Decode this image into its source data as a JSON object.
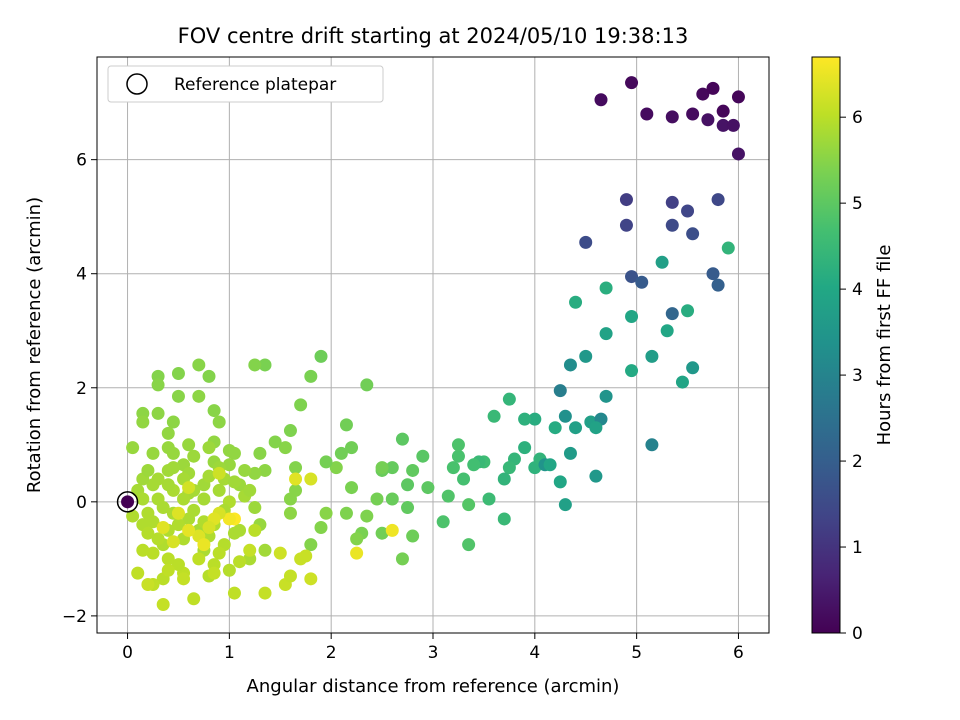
{
  "chart_data": {
    "type": "scatter",
    "title": "FOV centre drift starting at 2024/05/10 19:38:13",
    "xlabel": "Angular distance from reference (arcmin)",
    "ylabel": "Rotation from reference (arcmin)",
    "xlim": [
      -0.3,
      6.3
    ],
    "ylim": [
      -2.3,
      7.8
    ],
    "x_ticks": [
      0,
      1,
      2,
      3,
      4,
      5,
      6
    ],
    "y_ticks": [
      -2,
      0,
      2,
      4,
      6
    ],
    "grid": true,
    "legend": {
      "location": "top-left",
      "entries": [
        "Reference platepar"
      ]
    },
    "reference_point": {
      "x": 0,
      "y": 0,
      "label": "Reference platepar"
    },
    "colorbar": {
      "label": "Hours from first FF file",
      "colormap": "viridis",
      "range": [
        0,
        6.7
      ],
      "ticks": [
        0,
        1,
        2,
        3,
        4,
        5,
        6
      ]
    },
    "points": [
      [
        0.0,
        0.0,
        0.0
      ],
      [
        4.95,
        7.35,
        0.15
      ],
      [
        4.65,
        7.05,
        0.2
      ],
      [
        5.1,
        6.8,
        0.2
      ],
      [
        5.35,
        6.75,
        0.25
      ],
      [
        5.55,
        6.8,
        0.2
      ],
      [
        5.65,
        7.15,
        0.15
      ],
      [
        5.75,
        7.25,
        0.1
      ],
      [
        5.85,
        6.85,
        0.1
      ],
      [
        6.0,
        7.1,
        0.1
      ],
      [
        5.7,
        6.7,
        0.3
      ],
      [
        5.85,
        6.6,
        0.35
      ],
      [
        5.95,
        6.6,
        0.3
      ],
      [
        6.0,
        6.1,
        0.35
      ],
      [
        4.9,
        5.3,
        1.2
      ],
      [
        5.35,
        5.25,
        1.25
      ],
      [
        5.5,
        5.1,
        1.4
      ],
      [
        5.8,
        5.3,
        1.45
      ],
      [
        4.9,
        4.85,
        1.35
      ],
      [
        5.35,
        4.85,
        1.5
      ],
      [
        5.55,
        4.7,
        1.6
      ],
      [
        4.5,
        4.55,
        1.55
      ],
      [
        4.95,
        3.95,
        1.7
      ],
      [
        5.05,
        3.85,
        1.9
      ],
      [
        5.75,
        4.0,
        1.9
      ],
      [
        5.8,
        3.8,
        2.05
      ],
      [
        5.35,
        3.3,
        2.2
      ],
      [
        4.7,
        3.75,
        4.2
      ],
      [
        4.4,
        3.5,
        4.15
      ],
      [
        4.7,
        2.95,
        3.85
      ],
      [
        4.95,
        3.25,
        3.95
      ],
      [
        5.25,
        4.2,
        3.75
      ],
      [
        5.9,
        4.45,
        4.35
      ],
      [
        5.5,
        3.35,
        4.15
      ],
      [
        4.5,
        2.55,
        3.55
      ],
      [
        4.35,
        2.4,
        3.25
      ],
      [
        4.25,
        1.95,
        2.85
      ],
      [
        4.3,
        1.5,
        3.35
      ],
      [
        4.4,
        1.3,
        3.8
      ],
      [
        4.55,
        1.4,
        3.75
      ],
      [
        4.7,
        1.85,
        3.45
      ],
      [
        4.65,
        1.45,
        3.1
      ],
      [
        4.6,
        1.3,
        3.85
      ],
      [
        5.3,
        3.0,
        3.95
      ],
      [
        5.55,
        2.35,
        3.55
      ],
      [
        5.45,
        2.1,
        3.9
      ],
      [
        4.95,
        2.3,
        4.05
      ],
      [
        5.15,
        2.55,
        3.7
      ],
      [
        5.15,
        1.0,
        2.95
      ],
      [
        4.6,
        0.45,
        3.55
      ],
      [
        4.3,
        -0.05,
        3.8
      ],
      [
        4.25,
        0.35,
        3.95
      ],
      [
        4.2,
        1.3,
        4.1
      ],
      [
        4.0,
        1.45,
        4.15
      ],
      [
        3.9,
        0.95,
        4.25
      ],
      [
        4.0,
        0.6,
        4.3
      ],
      [
        4.05,
        0.75,
        4.35
      ],
      [
        4.1,
        0.65,
        3.45
      ],
      [
        4.15,
        0.65,
        3.95
      ],
      [
        4.35,
        0.85,
        3.65
      ],
      [
        3.8,
        0.75,
        4.4
      ],
      [
        3.75,
        0.6,
        4.45
      ],
      [
        3.7,
        0.4,
        4.35
      ],
      [
        3.7,
        -0.3,
        4.5
      ],
      [
        3.55,
        0.05,
        4.55
      ],
      [
        3.6,
        1.5,
        4.5
      ],
      [
        3.75,
        1.8,
        4.4
      ],
      [
        3.9,
        1.45,
        4.25
      ],
      [
        3.5,
        0.7,
        4.6
      ],
      [
        3.45,
        0.7,
        4.5
      ],
      [
        3.4,
        0.65,
        4.65
      ],
      [
        3.3,
        0.4,
        4.7
      ],
      [
        3.25,
        0.8,
        4.75
      ],
      [
        3.25,
        1.0,
        4.8
      ],
      [
        3.2,
        0.6,
        4.75
      ],
      [
        3.15,
        0.1,
        4.85
      ],
      [
        3.1,
        -0.35,
        4.8
      ],
      [
        3.35,
        -0.05,
        4.9
      ],
      [
        3.35,
        -0.75,
        4.85
      ],
      [
        2.9,
        0.8,
        4.95
      ],
      [
        2.95,
        0.25,
        5.0
      ],
      [
        2.8,
        0.55,
        5.05
      ],
      [
        2.75,
        0.3,
        5.0
      ],
      [
        2.7,
        1.1,
        5.0
      ],
      [
        2.6,
        0.6,
        5.1
      ],
      [
        2.6,
        0.05,
        5.15
      ],
      [
        2.75,
        -0.1,
        5.05
      ],
      [
        2.8,
        -0.6,
        5.2
      ],
      [
        2.7,
        -1.0,
        5.3
      ],
      [
        2.5,
        -0.55,
        5.25
      ],
      [
        2.45,
        0.05,
        5.3
      ],
      [
        2.5,
        0.55,
        5.15
      ],
      [
        2.5,
        0.6,
        5.3
      ],
      [
        2.35,
        2.05,
        5.25
      ],
      [
        2.3,
        -0.55,
        5.35
      ],
      [
        2.25,
        -0.65,
        5.45
      ],
      [
        2.35,
        -0.25,
        5.4
      ],
      [
        2.2,
        0.25,
        5.35
      ],
      [
        2.2,
        0.95,
        5.25
      ],
      [
        2.1,
        0.85,
        5.25
      ],
      [
        2.15,
        1.35,
        5.25
      ],
      [
        2.15,
        -0.2,
        5.4
      ],
      [
        2.05,
        0.6,
        5.45
      ],
      [
        1.95,
        0.7,
        5.3
      ],
      [
        1.9,
        2.55,
        5.2
      ],
      [
        1.9,
        -0.45,
        5.45
      ],
      [
        1.95,
        -0.2,
        5.5
      ],
      [
        1.8,
        -0.75,
        5.45
      ],
      [
        1.8,
        2.2,
        5.35
      ],
      [
        1.7,
        1.7,
        5.4
      ],
      [
        1.65,
        0.6,
        5.45
      ],
      [
        1.65,
        0.2,
        5.5
      ],
      [
        1.6,
        -0.2,
        5.55
      ],
      [
        1.6,
        0.05,
        5.5
      ],
      [
        1.6,
        1.25,
        5.4
      ],
      [
        1.55,
        0.95,
        5.5
      ],
      [
        1.45,
        1.05,
        5.45
      ],
      [
        1.35,
        0.55,
        5.55
      ],
      [
        1.35,
        2.4,
        5.35
      ],
      [
        1.25,
        2.4,
        5.45
      ],
      [
        1.3,
        0.85,
        5.5
      ],
      [
        1.25,
        0.5,
        5.6
      ],
      [
        1.3,
        -0.4,
        5.65
      ],
      [
        1.35,
        -0.85,
        5.75
      ],
      [
        1.2,
        -1.0,
        5.85
      ],
      [
        1.25,
        -0.1,
        5.7
      ],
      [
        1.1,
        0.3,
        5.7
      ],
      [
        1.15,
        0.55,
        5.65
      ],
      [
        1.05,
        0.85,
        5.6
      ],
      [
        1.0,
        0.65,
        5.65
      ],
      [
        1.0,
        0.0,
        5.9
      ],
      [
        1.05,
        -0.55,
        5.85
      ],
      [
        1.0,
        -1.2,
        5.95
      ],
      [
        1.05,
        -1.6,
        6.05
      ],
      [
        1.1,
        -1.05,
        6.0
      ],
      [
        0.85,
        1.6,
        5.5
      ],
      [
        0.9,
        1.4,
        5.55
      ],
      [
        0.85,
        1.05,
        5.6
      ],
      [
        0.85,
        0.7,
        5.65
      ],
      [
        0.8,
        0.95,
        5.7
      ],
      [
        0.8,
        2.2,
        5.45
      ],
      [
        0.7,
        2.4,
        5.5
      ],
      [
        0.7,
        1.85,
        5.55
      ],
      [
        0.75,
        0.3,
        5.75
      ],
      [
        0.7,
        -0.5,
        5.8
      ],
      [
        0.75,
        -0.85,
        5.85
      ],
      [
        0.8,
        -1.3,
        5.95
      ],
      [
        0.65,
        -1.7,
        6.05
      ],
      [
        0.6,
        -0.3,
        5.85
      ],
      [
        0.6,
        0.15,
        5.8
      ],
      [
        0.55,
        0.65,
        5.7
      ],
      [
        0.5,
        1.85,
        5.5
      ],
      [
        0.5,
        2.25,
        5.45
      ],
      [
        0.45,
        1.4,
        5.55
      ],
      [
        0.4,
        1.2,
        5.6
      ],
      [
        0.4,
        0.55,
        5.75
      ],
      [
        0.35,
        -0.1,
        5.85
      ],
      [
        0.35,
        -0.75,
        5.9
      ],
      [
        0.35,
        -1.35,
        6.0
      ],
      [
        0.35,
        -1.8,
        6.1
      ],
      [
        0.3,
        2.2,
        5.45
      ],
      [
        0.3,
        2.05,
        5.5
      ],
      [
        0.3,
        1.55,
        5.55
      ],
      [
        0.25,
        0.85,
        5.65
      ],
      [
        0.25,
        0.3,
        5.8
      ],
      [
        0.25,
        -0.35,
        5.9
      ],
      [
        0.25,
        -0.9,
        6.0
      ],
      [
        0.25,
        -1.45,
        6.05
      ],
      [
        0.15,
        1.55,
        5.55
      ],
      [
        0.15,
        1.4,
        5.6
      ],
      [
        0.15,
        0.4,
        5.75
      ],
      [
        0.15,
        -0.4,
        5.9
      ],
      [
        0.15,
        -0.85,
        6.0
      ],
      [
        0.1,
        -1.25,
        6.05
      ],
      [
        0.05,
        0.95,
        5.65
      ],
      [
        0.1,
        0.2,
        5.8
      ],
      [
        0.05,
        -0.25,
        5.9
      ],
      [
        0.2,
        0.55,
        5.7
      ],
      [
        0.45,
        0.2,
        5.85
      ],
      [
        0.5,
        -0.4,
        5.9
      ],
      [
        0.55,
        -0.65,
        5.9
      ],
      [
        0.6,
        0.5,
        5.75
      ],
      [
        0.65,
        -0.15,
        5.85
      ],
      [
        0.75,
        0.05,
        5.8
      ],
      [
        0.85,
        -0.4,
        5.9
      ],
      [
        0.9,
        0.2,
        5.8
      ],
      [
        0.95,
        -0.75,
        5.95
      ],
      [
        0.4,
        -0.5,
        5.9
      ],
      [
        0.45,
        0.6,
        5.75
      ],
      [
        0.55,
        0.05,
        5.85
      ],
      [
        0.3,
        0.05,
        5.85
      ],
      [
        0.2,
        -0.2,
        5.9
      ],
      [
        0.2,
        -0.55,
        5.95
      ],
      [
        0.65,
        0.8,
        5.7
      ],
      [
        0.9,
        0.6,
        5.7
      ],
      [
        0.4,
        -1.0,
        6.0
      ],
      [
        0.55,
        -1.25,
        6.05
      ],
      [
        0.85,
        -1.1,
        6.0
      ],
      [
        0.7,
        -1.0,
        6.05
      ],
      [
        0.5,
        -1.1,
        6.0
      ],
      [
        0.4,
        0.95,
        5.65
      ],
      [
        0.6,
        1.0,
        5.65
      ],
      [
        0.95,
        0.4,
        5.8
      ],
      [
        1.0,
        0.9,
        5.6
      ],
      [
        1.15,
        0.1,
        5.8
      ],
      [
        1.2,
        0.2,
        5.75
      ],
      [
        0.65,
        0.2,
        5.8
      ],
      [
        0.3,
        0.4,
        5.8
      ],
      [
        0.45,
        -0.2,
        5.85
      ],
      [
        0.75,
        -0.35,
        5.9
      ],
      [
        0.3,
        -0.65,
        5.95
      ],
      [
        0.15,
        0.05,
        5.85
      ],
      [
        0.45,
        0.85,
        5.65
      ],
      [
        0.95,
        -0.15,
        5.85
      ],
      [
        0.8,
        -0.6,
        5.9
      ],
      [
        1.1,
        -0.5,
        5.85
      ],
      [
        1.05,
        0.35,
        5.75
      ],
      [
        0.55,
        0.4,
        5.8
      ],
      [
        0.8,
        0.45,
        5.8
      ],
      [
        0.4,
        0.3,
        5.8
      ],
      [
        0.9,
        -0.9,
        6.0
      ],
      [
        1.05,
        -0.3,
        6.7
      ],
      [
        1.65,
        0.4,
        6.4
      ],
      [
        1.8,
        0.4,
        6.3
      ],
      [
        2.25,
        -0.9,
        6.5
      ],
      [
        2.6,
        -0.5,
        6.55
      ],
      [
        1.0,
        -0.3,
        6.6
      ],
      [
        1.5,
        -0.9,
        6.2
      ],
      [
        1.55,
        -1.45,
        6.15
      ],
      [
        1.6,
        -1.3,
        6.1
      ],
      [
        1.75,
        -0.95,
        6.15
      ],
      [
        1.8,
        -1.35,
        6.2
      ],
      [
        1.7,
        -1.0,
        6.15
      ],
      [
        1.35,
        -1.6,
        6.1
      ],
      [
        1.2,
        -0.85,
        6.1
      ],
      [
        1.25,
        -0.5,
        6.0
      ],
      [
        0.85,
        -1.25,
        6.1
      ],
      [
        0.2,
        -1.45,
        6.15
      ],
      [
        0.55,
        -1.35,
        6.1
      ],
      [
        0.4,
        -1.2,
        6.05
      ],
      [
        0.9,
        -0.2,
        6.3
      ],
      [
        0.7,
        -0.6,
        6.35
      ],
      [
        0.85,
        -0.3,
        6.4
      ],
      [
        0.6,
        -0.5,
        6.45
      ],
      [
        0.75,
        -0.75,
        6.5
      ],
      [
        0.8,
        -0.45,
        6.3
      ],
      [
        0.9,
        0.5,
        6.2
      ],
      [
        0.6,
        0.25,
        6.25
      ],
      [
        0.5,
        -0.2,
        6.35
      ],
      [
        0.35,
        -0.45,
        6.4
      ],
      [
        0.45,
        -0.7,
        6.3
      ]
    ]
  }
}
